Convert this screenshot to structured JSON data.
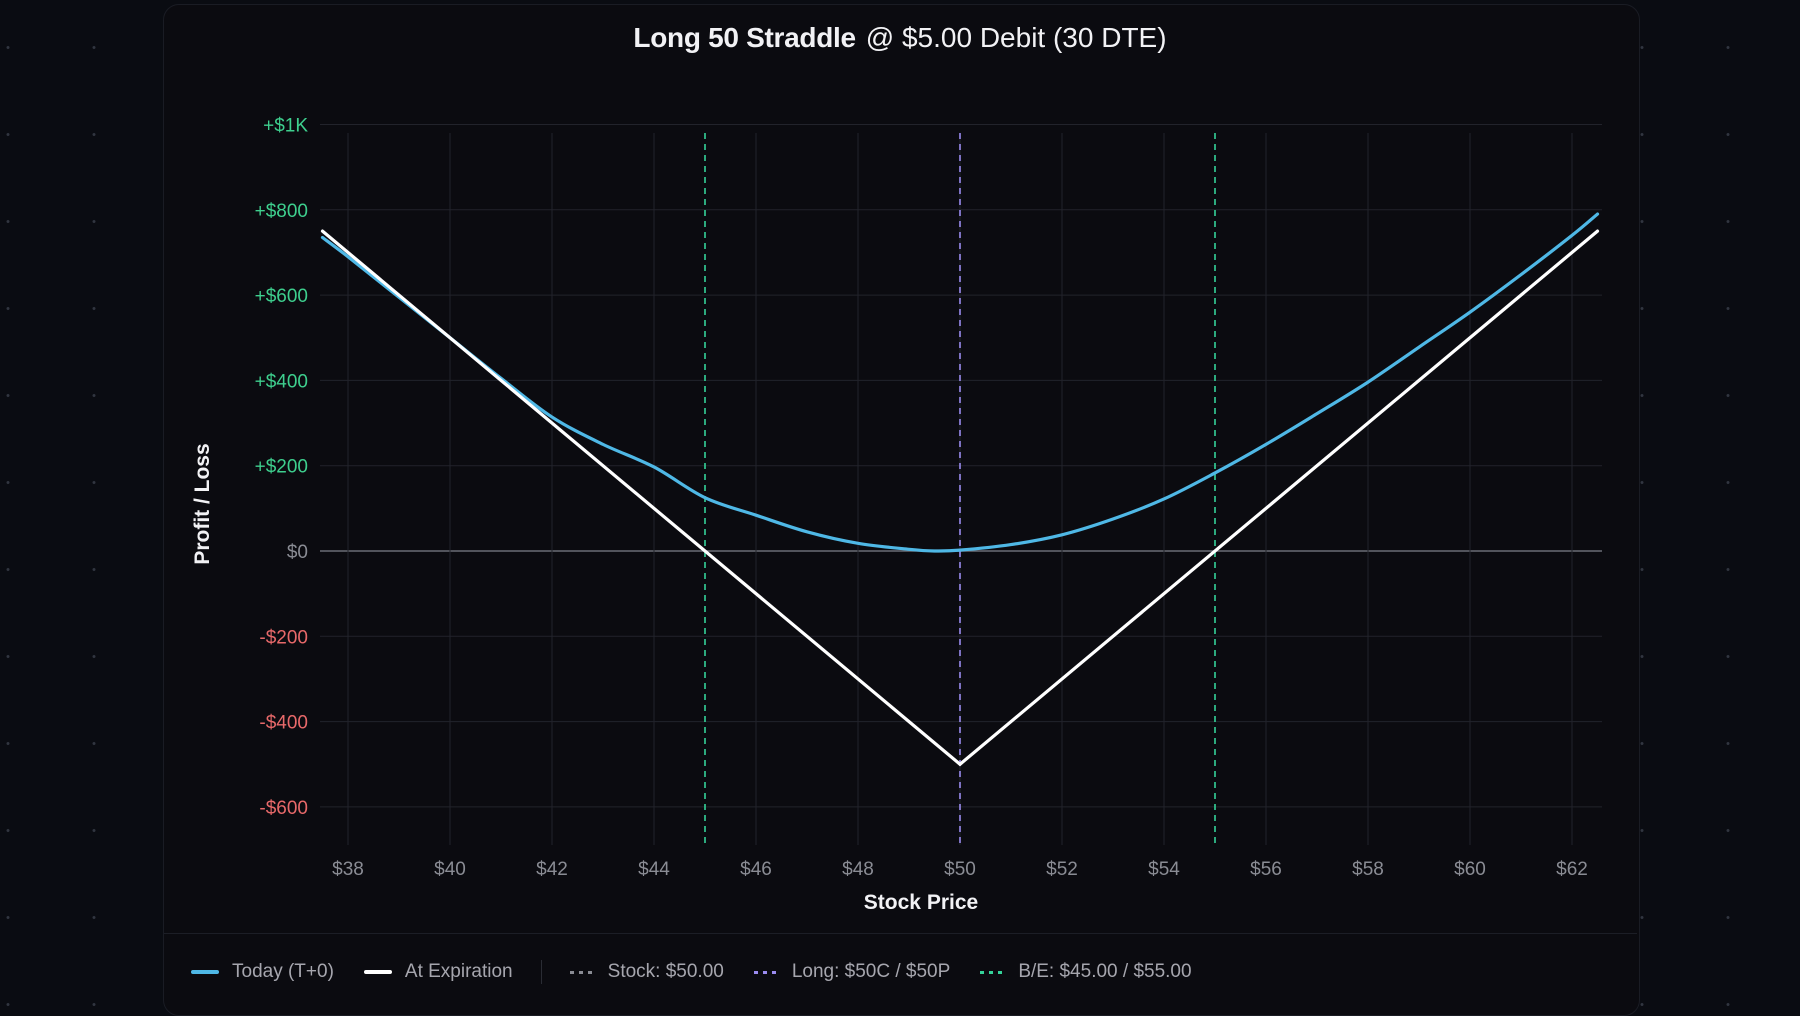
{
  "title": {
    "bold": "Long 50 Straddle",
    "rest": "@ $5.00 Debit (30 DTE)"
  },
  "colors": {
    "background": "#0a0c12",
    "card": "#0b0b10",
    "grid": "#22232b",
    "zero_line": "#6b6d75",
    "t0": "#4fb8e6",
    "expiration": "#ffffff",
    "breakeven": "#34d399",
    "strike": "#9b8cf0",
    "stock": "#8a8c94",
    "pos_tick": "#3ecf8e",
    "neg_tick": "#e8696a",
    "zero_tick": "#8a8c94",
    "x_tick": "#8a8c94"
  },
  "axes": {
    "ylabel": "Profit / Loss",
    "xlabel": "Stock Price"
  },
  "legend": {
    "items": [
      {
        "label": "Today (T+0)",
        "style": "solid",
        "color": "#4fb8e6"
      },
      {
        "label": "At Expiration",
        "style": "solid",
        "color": "#ffffff"
      },
      {
        "label": "Stock: $50.00",
        "style": "dashed",
        "color": "#8a8c94"
      },
      {
        "label": "Long: $50C / $50P",
        "style": "dashed",
        "color": "#9b8cf0"
      },
      {
        "label": "B/E: $45.00 / $55.00",
        "style": "dashed",
        "color": "#34d399"
      }
    ]
  },
  "chart_data": {
    "type": "line",
    "title": "Long 50 Straddle @ $5.00 Debit (30 DTE)",
    "xlabel": "Stock Price",
    "ylabel": "Profit / Loss",
    "xlim": [
      37.5,
      62.5
    ],
    "ylim": [
      -700,
      1000
    ],
    "x_ticks": [
      38,
      40,
      42,
      44,
      46,
      48,
      50,
      52,
      54,
      56,
      58,
      60,
      62
    ],
    "x_tick_labels": [
      "$38",
      "$40",
      "$42",
      "$44",
      "$46",
      "$48",
      "$50",
      "$52",
      "$54",
      "$56",
      "$58",
      "$60",
      "$62"
    ],
    "y_ticks": [
      1000,
      800,
      600,
      400,
      200,
      0,
      -200,
      -400,
      -600
    ],
    "y_tick_labels": [
      "+$1K",
      "+$800",
      "+$600",
      "+$400",
      "+$200",
      "$0",
      "-$200",
      "-$400",
      "-$600"
    ],
    "grid": true,
    "legend_position": "bottom",
    "series": [
      {
        "name": "Today (T+0)",
        "x": [
          37.5,
          38,
          39,
          40,
          41,
          42,
          43,
          44,
          45,
          46,
          47,
          48,
          49,
          49.5,
          50,
          51,
          52,
          53,
          54,
          55,
          56,
          57,
          58,
          59,
          60,
          61,
          62,
          62.5
        ],
        "y": [
          735,
          690,
          595,
          500,
          405,
          314,
          250,
          197,
          125,
          84,
          45,
          18,
          4,
          0,
          2,
          15,
          38,
          75,
          122,
          183,
          250,
          322,
          396,
          478,
          560,
          648,
          740,
          790
        ]
      },
      {
        "name": "At Expiration",
        "x": [
          37.5,
          50,
          62.5
        ],
        "y": [
          750,
          -500,
          750
        ]
      }
    ],
    "vertical_markers": [
      {
        "name": "B/E lower",
        "x": 45,
        "color": "#34d399",
        "style": "dashed"
      },
      {
        "name": "Long strike / Stock",
        "x": 50,
        "color": "#9b8cf0",
        "style": "dashed"
      },
      {
        "name": "B/E upper",
        "x": 55,
        "color": "#34d399",
        "style": "dashed"
      }
    ],
    "annotations": [
      "Stock: $50.00",
      "Long: $50C / $50P",
      "B/E: $45.00 / $55.00"
    ]
  }
}
